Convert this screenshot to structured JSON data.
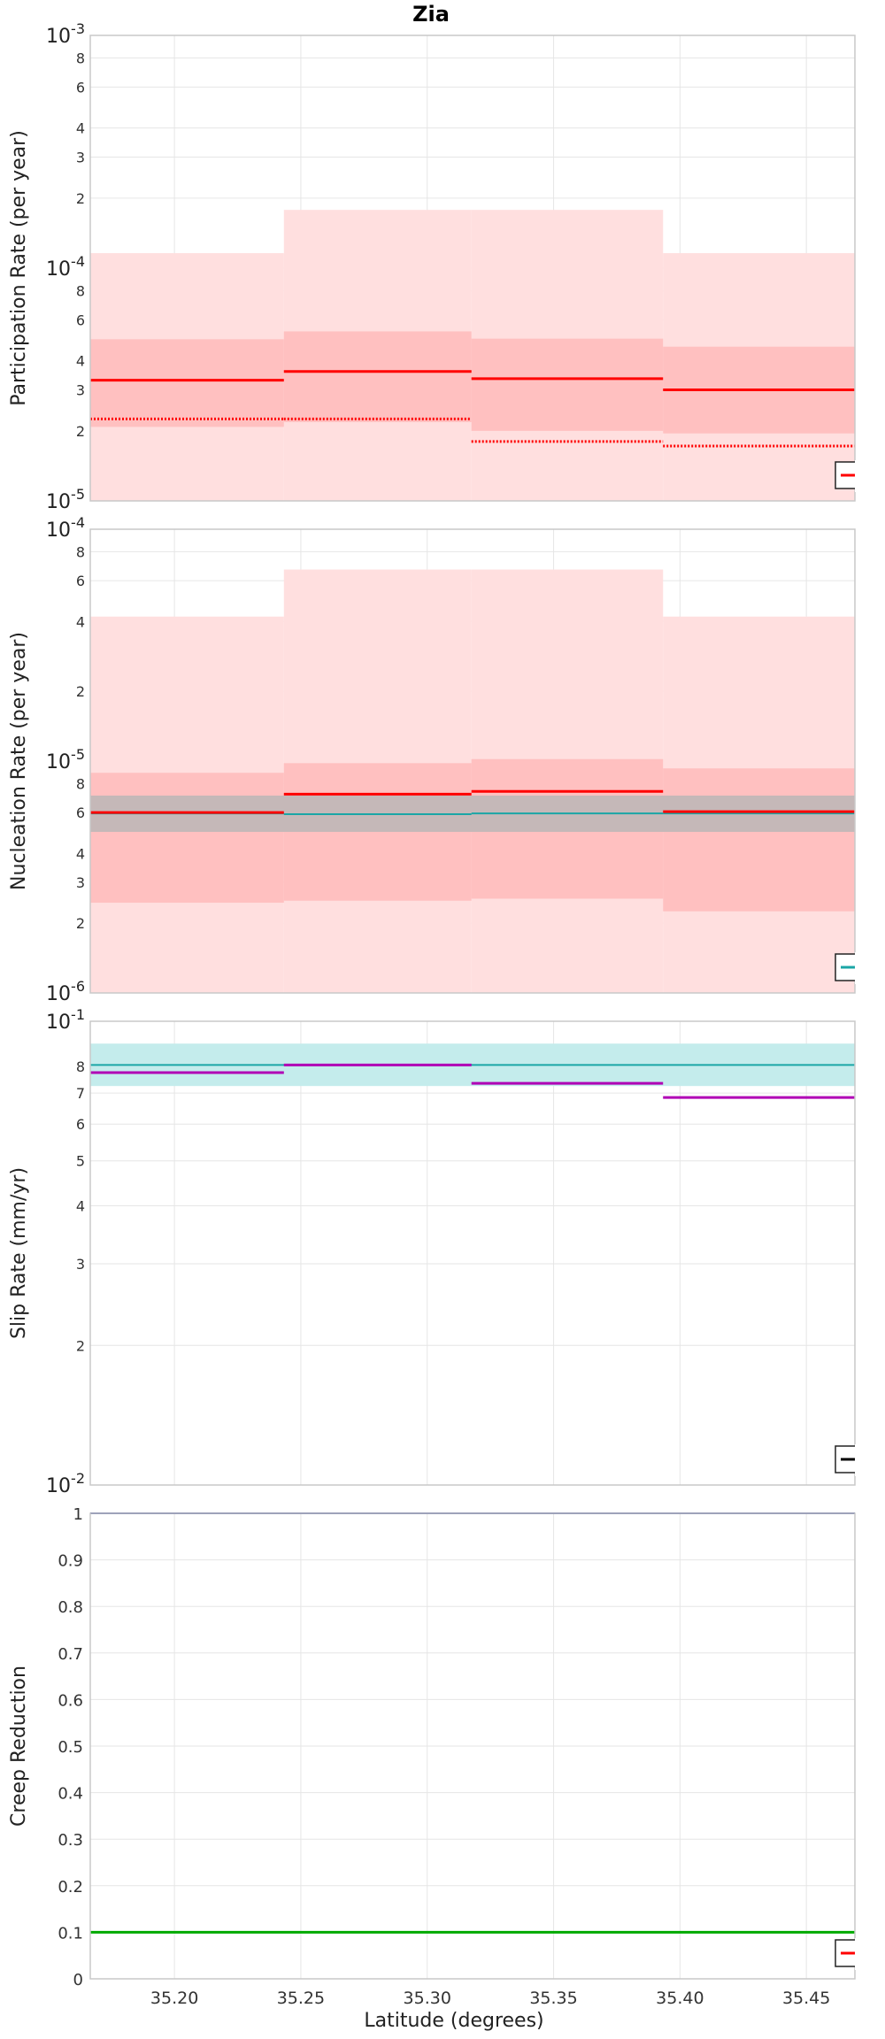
{
  "figure_title": "Zia",
  "x_axis": {
    "label": "Latitude (degrees)",
    "range": [
      35.1667,
      35.4692
    ],
    "ticks": [
      35.2,
      35.25,
      35.3,
      35.35,
      35.4,
      35.45
    ],
    "tick_labels": [
      "35.20",
      "35.25",
      "35.30",
      "35.35",
      "35.40",
      "35.45"
    ]
  },
  "colors": {
    "red": "#ff0000",
    "teal": "#1aa6a6",
    "magenta": "#b000b5",
    "green": "#00aa00",
    "navy": "#1f2f8f",
    "light_red": "#ffdfdf",
    "mid_red": "#ffc0c0",
    "gray_band": "#c5b8b8",
    "light_teal": "#c4ecec"
  },
  "chart_data": [
    {
      "id": "participation",
      "type": "line",
      "ylabel": "Participation Rate (per year)",
      "yscale": "log",
      "ylim": [
        1e-05,
        0.001
      ],
      "major_ticks": [
        {
          "value": 1e-05,
          "base": "10",
          "exp": "-5"
        },
        {
          "value": 0.0001,
          "base": "10",
          "exp": "-4"
        },
        {
          "value": 0.001,
          "base": "10",
          "exp": "-3"
        }
      ],
      "minor_ticks": [
        {
          "value": 2e-05,
          "label": "2"
        },
        {
          "value": 3e-05,
          "label": "3"
        },
        {
          "value": 4e-05,
          "label": "4"
        },
        {
          "value": 6e-05,
          "label": "6"
        },
        {
          "value": 8e-05,
          "label": "8"
        },
        {
          "value": 0.0002,
          "label": "2"
        },
        {
          "value": 0.0003,
          "label": "3"
        },
        {
          "value": 0.0004,
          "label": "4"
        },
        {
          "value": 0.0006,
          "label": "6"
        },
        {
          "value": 0.0008,
          "label": "8"
        }
      ],
      "legend_colors": [
        "red"
      ],
      "bands": [
        {
          "color": "light_red",
          "segments": [
            [
              35.1667,
              35.2433,
              1e-05,
              0.000116
            ],
            [
              35.2433,
              35.3175,
              1e-05,
              0.000178
            ],
            [
              35.3175,
              35.3933,
              1e-05,
              0.000178
            ],
            [
              35.3933,
              35.4692,
              1e-05,
              0.000116
            ]
          ]
        },
        {
          "color": "mid_red",
          "segments": [
            [
              35.1667,
              35.2433,
              2.08e-05,
              4.95e-05
            ],
            [
              35.2433,
              35.3175,
              2.18e-05,
              5.35e-05
            ],
            [
              35.3175,
              35.3933,
              2e-05,
              4.98e-05
            ],
            [
              35.3933,
              35.4692,
              1.95e-05,
              4.6e-05
            ]
          ]
        }
      ],
      "series": [
        {
          "color": "red",
          "style": "solid",
          "width": 3,
          "segments": [
            [
              35.1667,
              35.2433,
              3.3e-05
            ],
            [
              35.2433,
              35.3175,
              3.6e-05
            ],
            [
              35.3175,
              35.3933,
              3.35e-05
            ],
            [
              35.3933,
              35.4692,
              3e-05
            ]
          ]
        },
        {
          "color": "red",
          "style": "dotted",
          "width": 3,
          "segments": [
            [
              35.1667,
              35.2433,
              2.25e-05
            ],
            [
              35.2433,
              35.3175,
              2.25e-05
            ],
            [
              35.3175,
              35.3933,
              1.8e-05
            ],
            [
              35.3933,
              35.4692,
              1.72e-05
            ]
          ]
        }
      ]
    },
    {
      "id": "nucleation",
      "type": "line",
      "ylabel": "Nucleation Rate (per year)",
      "yscale": "log",
      "ylim": [
        1e-06,
        0.0001
      ],
      "major_ticks": [
        {
          "value": 1e-06,
          "base": "10",
          "exp": "-6"
        },
        {
          "value": 1e-05,
          "base": "10",
          "exp": "-5"
        },
        {
          "value": 0.0001,
          "base": "10",
          "exp": "-4"
        }
      ],
      "minor_ticks": [
        {
          "value": 2e-06,
          "label": "2"
        },
        {
          "value": 3e-06,
          "label": "3"
        },
        {
          "value": 4e-06,
          "label": "4"
        },
        {
          "value": 6e-06,
          "label": "6"
        },
        {
          "value": 8e-06,
          "label": "8"
        },
        {
          "value": 2e-05,
          "label": "2"
        },
        {
          "value": 4e-05,
          "label": "4"
        },
        {
          "value": 6e-05,
          "label": "6"
        },
        {
          "value": 8e-05,
          "label": "8"
        }
      ],
      "legend_colors": [
        "teal"
      ],
      "bands": [
        {
          "color": "light_red",
          "segments": [
            [
              35.1667,
              35.2433,
              1e-06,
              4.2e-05
            ],
            [
              35.2433,
              35.3175,
              1e-06,
              6.7e-05
            ],
            [
              35.3175,
              35.3933,
              1e-06,
              6.7e-05
            ],
            [
              35.3933,
              35.4692,
              1e-06,
              4.2e-05
            ]
          ]
        },
        {
          "color": "mid_red",
          "segments": [
            [
              35.1667,
              35.2433,
              2.45e-06,
              8.9e-06
            ],
            [
              35.2433,
              35.3175,
              2.5e-06,
              9.8e-06
            ],
            [
              35.3175,
              35.3933,
              2.55e-06,
              1.02e-05
            ],
            [
              35.3933,
              35.4692,
              2.25e-06,
              9.3e-06
            ]
          ]
        },
        {
          "color": "gray_band",
          "segments": [
            [
              35.1667,
              35.4692,
              4.95e-06,
              7.1e-06
            ]
          ]
        }
      ],
      "series": [
        {
          "color": "teal",
          "style": "solid",
          "width": 2,
          "segments": [
            [
              35.1667,
              35.2433,
              5.95e-06
            ],
            [
              35.2433,
              35.3175,
              5.9e-06
            ],
            [
              35.3175,
              35.3933,
              5.95e-06
            ],
            [
              35.3933,
              35.4692,
              5.95e-06
            ]
          ]
        },
        {
          "color": "red",
          "style": "solid",
          "width": 3,
          "segments": [
            [
              35.1667,
              35.2433,
              6e-06
            ],
            [
              35.2433,
              35.3175,
              7.2e-06
            ],
            [
              35.3175,
              35.3933,
              7.4e-06
            ],
            [
              35.3933,
              35.4692,
              6.05e-06
            ]
          ]
        }
      ]
    },
    {
      "id": "slip",
      "type": "line",
      "ylabel": "Slip Rate (mm/yr)",
      "yscale": "log",
      "ylim": [
        0.01,
        0.1
      ],
      "major_ticks": [
        {
          "value": 0.01,
          "base": "10",
          "exp": "-2"
        },
        {
          "value": 0.1,
          "base": "10",
          "exp": "-1"
        }
      ],
      "minor_ticks": [
        {
          "value": 0.02,
          "label": "2"
        },
        {
          "value": 0.03,
          "label": "3"
        },
        {
          "value": 0.04,
          "label": "4"
        },
        {
          "value": 0.05,
          "label": "5"
        },
        {
          "value": 0.06,
          "label": "6"
        },
        {
          "value": 0.07,
          "label": "7"
        },
        {
          "value": 0.08,
          "label": "8"
        }
      ],
      "legend_colors": [
        "black"
      ],
      "bands": [
        {
          "color": "light_teal",
          "segments": [
            [
              35.1667,
              35.4692,
              0.0725,
              0.0895
            ]
          ]
        }
      ],
      "series": [
        {
          "color": "teal",
          "style": "solid",
          "width": 2,
          "segments": [
            [
              35.1667,
              35.4692,
              0.0805
            ]
          ]
        },
        {
          "color": "magenta",
          "style": "solid",
          "width": 3,
          "segments": [
            [
              35.1667,
              35.2433,
              0.0775
            ],
            [
              35.2433,
              35.3175,
              0.0805
            ],
            [
              35.3175,
              35.3933,
              0.0735
            ],
            [
              35.3933,
              35.4692,
              0.0685
            ]
          ]
        }
      ]
    },
    {
      "id": "creep",
      "type": "line",
      "ylabel": "Creep Reduction",
      "yscale": "linear",
      "ylim": [
        0,
        1
      ],
      "ticks": [
        0,
        0.1,
        0.2,
        0.3,
        0.4,
        0.5,
        0.6,
        0.7,
        0.8,
        0.9,
        1
      ],
      "tick_labels": [
        "0",
        "0.1",
        "0.2",
        "0.3",
        "0.4",
        "0.5",
        "0.6",
        "0.7",
        "0.8",
        "0.9",
        "1"
      ],
      "legend_colors": [
        "red"
      ],
      "bands": [],
      "series": [
        {
          "color": "navy",
          "style": "solid",
          "width": 2,
          "segments": [
            [
              35.1667,
              35.4692,
              1.0
            ]
          ]
        },
        {
          "color": "green",
          "style": "solid",
          "width": 3,
          "segments": [
            [
              35.1667,
              35.4692,
              0.1
            ]
          ]
        }
      ]
    }
  ]
}
